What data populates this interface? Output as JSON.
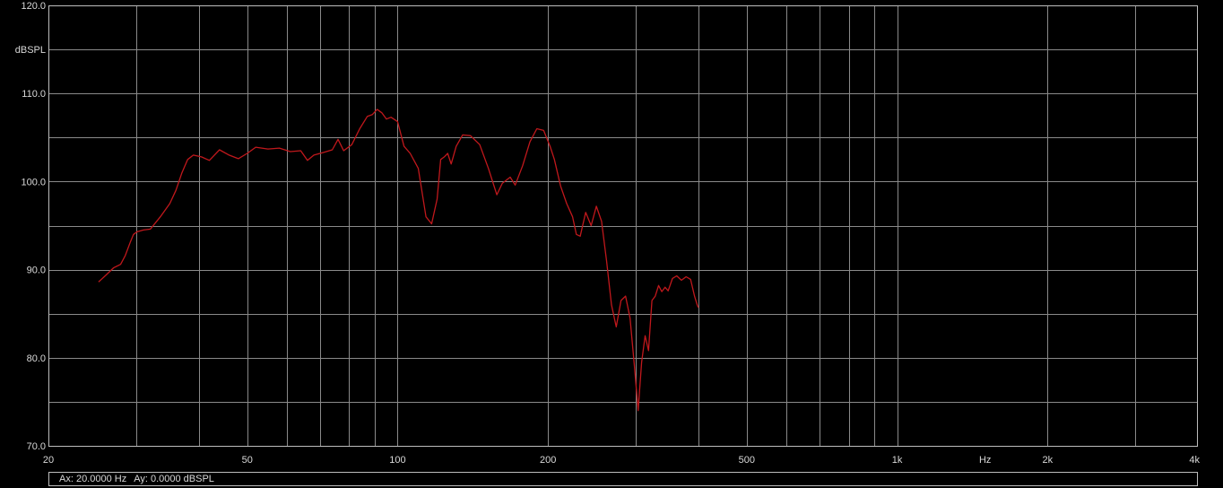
{
  "chart_data": {
    "type": "line",
    "title": "",
    "xlabel": "Hz",
    "ylabel": "dBSPL",
    "x_scale": "log",
    "xlim": [
      20,
      4000
    ],
    "ylim": [
      70,
      120
    ],
    "grid": true,
    "background": "#000000",
    "grid_color": "#8a8a8a",
    "axis_color": "#bdbdbd",
    "text_color": "#d8d8d8",
    "x_tick_labels": [
      {
        "value": 20,
        "label": "20"
      },
      {
        "value": 50,
        "label": "50"
      },
      {
        "value": 100,
        "label": "100"
      },
      {
        "value": 200,
        "label": "200"
      },
      {
        "value": 500,
        "label": "500"
      },
      {
        "value": 1000,
        "label": "1k"
      },
      {
        "value": 2000,
        "label": "2k"
      },
      {
        "value": 4000,
        "label": "4k"
      }
    ],
    "x_minor_grid": [
      30,
      40,
      60,
      70,
      80,
      90,
      300,
      400,
      600,
      700,
      800,
      900,
      3000
    ],
    "y_tick_labels": [
      {
        "value": 70,
        "label": "70.0"
      },
      {
        "value": 80,
        "label": "80.0"
      },
      {
        "value": 90,
        "label": "90.0"
      },
      {
        "value": 100,
        "label": "100.0"
      },
      {
        "value": 110,
        "label": "110.0"
      },
      {
        "value": 120,
        "label": "120.0"
      }
    ],
    "y_minor_grid": [
      75,
      85,
      95,
      105,
      115
    ],
    "series": [
      {
        "color": "#c0181c",
        "x": [
          25.2,
          26.1,
          27.0,
          27.9,
          28.5,
          29.2,
          29.6,
          30.1,
          31.0,
          32.0,
          33.5,
          35.0,
          36.0,
          37.0,
          38.0,
          39.0,
          40.5,
          42.0,
          44.0,
          46.0,
          48.0,
          50.0,
          52.0,
          55.0,
          58.0,
          61.0,
          64.0,
          66.0,
          68.0,
          71.0,
          74.0,
          76.0,
          78.0,
          81.0,
          84.0,
          87.0,
          89.0,
          91.0,
          93.0,
          95.0,
          97.0,
          100.0,
          103.0,
          106.0,
          110.0,
          114.0,
          117.0,
          120.0,
          122.0,
          124.0,
          126.0,
          128.0,
          131.0,
          135.0,
          140.0,
          146.0,
          152.0,
          158.0,
          162.0,
          168.0,
          172.0,
          178.0,
          184.0,
          190.0,
          196.0,
          202.0,
          206.0,
          212.0,
          218.0,
          224.0,
          228.0,
          232.0,
          238.0,
          244.0,
          250.0,
          256.0,
          262.0,
          268.0,
          274.0,
          280.0,
          286.0,
          292.0,
          298.0,
          303.0,
          308.0,
          313.0,
          318.0,
          323.0,
          328.0,
          333.0,
          338.0,
          343.0,
          348.0,
          355.0,
          362.0,
          370.0,
          378.0,
          386.0,
          393.0,
          398.0,
          400.0
        ],
        "y": [
          88.6,
          89.4,
          90.2,
          90.6,
          91.6,
          93.2,
          94.0,
          94.3,
          94.5,
          94.6,
          96.0,
          97.5,
          99.0,
          101.0,
          102.5,
          103.0,
          102.8,
          102.4,
          103.6,
          103.0,
          102.6,
          103.2,
          103.9,
          103.7,
          103.8,
          103.4,
          103.5,
          102.4,
          103.0,
          103.3,
          103.6,
          104.8,
          103.5,
          104.2,
          106.0,
          107.4,
          107.6,
          108.2,
          107.8,
          107.1,
          107.3,
          106.8,
          104.0,
          103.2,
          101.5,
          96.0,
          95.2,
          98.0,
          102.5,
          102.8,
          103.2,
          102.0,
          104.0,
          105.3,
          105.2,
          104.2,
          101.5,
          98.5,
          99.8,
          100.5,
          99.6,
          101.8,
          104.5,
          106.0,
          105.8,
          104.0,
          102.5,
          99.5,
          97.5,
          96.0,
          94.0,
          93.8,
          96.5,
          95.0,
          97.2,
          95.5,
          91.0,
          86.0,
          83.5,
          86.5,
          87.0,
          84.5,
          79.0,
          74.0,
          79.5,
          82.5,
          80.8,
          86.5,
          87.0,
          88.2,
          87.5,
          88.0,
          87.6,
          89.0,
          89.3,
          88.8,
          89.2,
          88.9,
          87.0,
          86.0,
          85.7
        ]
      }
    ]
  },
  "status": {
    "ax": "Ax: 20.0000 Hz",
    "ay": "Ay: 0.0000 dBSPL"
  }
}
